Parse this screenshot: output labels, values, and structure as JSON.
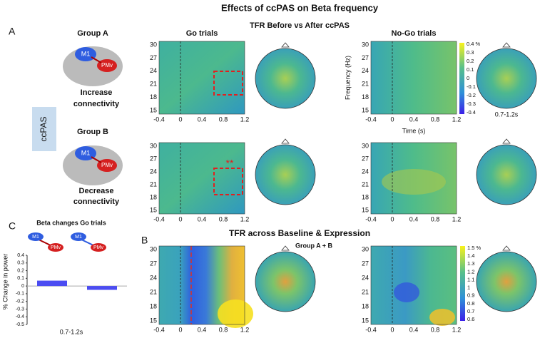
{
  "title": "Effects of ccPAS on Beta frequency",
  "freq_ticks": [
    30,
    27,
    24,
    21,
    18,
    15
  ],
  "time_ticks": [
    -0.4,
    0,
    0.4,
    0.8,
    1.2
  ],
  "panel_a": {
    "label": "A",
    "heading": "TFR Before vs After ccPAS",
    "group_a": {
      "title": "Group A",
      "m1": "M1",
      "pmv": "PMv",
      "caption": [
        "Increase",
        "connectivity"
      ]
    },
    "group_b": {
      "title": "Group B",
      "m1": "M1",
      "pmv": "PMv",
      "caption": [
        "Decrease",
        "connectivity"
      ]
    },
    "condition": "ccPAS",
    "go_title": "Go trials",
    "nogo_title": "No-Go trials",
    "ylabel": "Frequency (Hz)",
    "xlabel": "Time (s)",
    "colorbar_ticks": [
      "0.4 %",
      "0.3",
      "0.2",
      "0.1",
      "0",
      "-0.1",
      "-0.2",
      "-0.3",
      "-0.4"
    ],
    "window": "0.7-1.2s",
    "significance": "**"
  },
  "panel_b": {
    "label": "B",
    "heading": "TFR across Baseline & Expression",
    "subheading": "Group A + B",
    "colorbar_ticks": [
      "1.5 %",
      "1.4",
      "1.3",
      "1.2",
      "1.1",
      "1",
      "0.9",
      "0.8",
      "0.7",
      "0.6"
    ]
  },
  "panel_c": {
    "label": "C",
    "title": "Beta changes Go trials",
    "m1": "M1",
    "pmv": "PMv",
    "ylabel": "% Change in power",
    "xlabel": "0.7-1.2s",
    "values": [
      0.07,
      -0.05
    ],
    "ylim": [
      -0.5,
      0.4
    ],
    "yticks": [
      0.4,
      0.3,
      0.2,
      0.1,
      0,
      -0.1,
      -0.2,
      -0.3,
      -0.4,
      -0.5
    ],
    "color": "#4b4cf2"
  }
}
